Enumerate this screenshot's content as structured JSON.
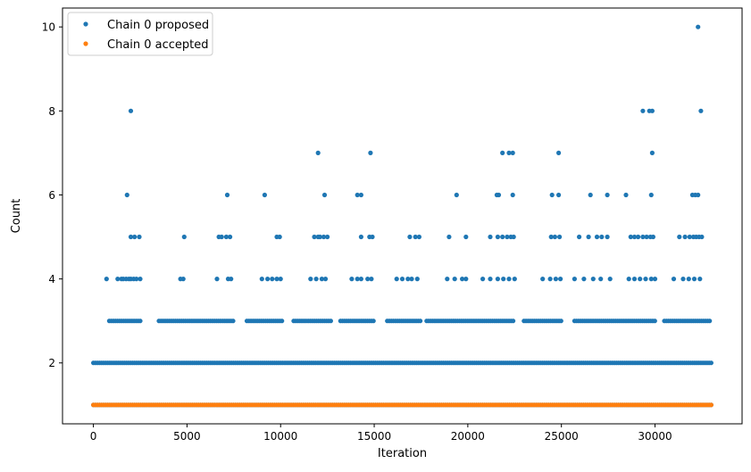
{
  "chart_data": {
    "type": "scatter",
    "title": "",
    "xlabel": "Iteration",
    "ylabel": "Count",
    "xlim": [
      -1650,
      34650
    ],
    "ylim": [
      0.55,
      10.45
    ],
    "x_ticks": [
      0,
      5000,
      10000,
      15000,
      20000,
      25000,
      30000
    ],
    "x_tick_labels": [
      "0",
      "5000",
      "10000",
      "15000",
      "20000",
      "25000",
      "30000"
    ],
    "y_ticks": [
      2,
      4,
      6,
      8,
      10
    ],
    "y_tick_labels": [
      "2",
      "4",
      "6",
      "8",
      "10"
    ],
    "grid": false,
    "legend_position": "top-left",
    "x_max_iteration": 33000,
    "series": [
      {
        "name": "Chain 0 proposed",
        "color": "#1f77b4",
        "dense_bands": [
          {
            "y": 1,
            "ranges": [
              [
                0,
                33000
              ]
            ]
          },
          {
            "y": 2,
            "ranges": [
              [
                0,
                33000
              ]
            ]
          },
          {
            "y": 3,
            "ranges": [
              [
                850,
                2600
              ],
              [
                3500,
                7500
              ],
              [
                8200,
                10100
              ],
              [
                10700,
                12700
              ],
              [
                13200,
                15000
              ],
              [
                15700,
                17500
              ],
              [
                17800,
                22500
              ],
              [
                23000,
                25000
              ],
              [
                25700,
                30000
              ],
              [
                30500,
                33000
              ]
            ]
          }
        ],
        "points": [
          [
            700,
            4
          ],
          [
            1300,
            4
          ],
          [
            1500,
            4
          ],
          [
            1600,
            4
          ],
          [
            1750,
            4
          ],
          [
            1900,
            4
          ],
          [
            2000,
            4
          ],
          [
            2150,
            4
          ],
          [
            2300,
            4
          ],
          [
            2500,
            4
          ],
          [
            4650,
            4
          ],
          [
            4800,
            4
          ],
          [
            6600,
            4
          ],
          [
            7200,
            4
          ],
          [
            7350,
            4
          ],
          [
            9000,
            4
          ],
          [
            9300,
            4
          ],
          [
            9550,
            4
          ],
          [
            9800,
            4
          ],
          [
            10000,
            4
          ],
          [
            11600,
            4
          ],
          [
            11900,
            4
          ],
          [
            12200,
            4
          ],
          [
            12400,
            4
          ],
          [
            13800,
            4
          ],
          [
            14100,
            4
          ],
          [
            14300,
            4
          ],
          [
            14650,
            4
          ],
          [
            14850,
            4
          ],
          [
            16200,
            4
          ],
          [
            16500,
            4
          ],
          [
            16800,
            4
          ],
          [
            17000,
            4
          ],
          [
            17300,
            4
          ],
          [
            18900,
            4
          ],
          [
            19300,
            4
          ],
          [
            19700,
            4
          ],
          [
            19900,
            4
          ],
          [
            20800,
            4
          ],
          [
            21200,
            4
          ],
          [
            21600,
            4
          ],
          [
            21900,
            4
          ],
          [
            22200,
            4
          ],
          [
            22500,
            4
          ],
          [
            24000,
            4
          ],
          [
            24400,
            4
          ],
          [
            24700,
            4
          ],
          [
            24950,
            4
          ],
          [
            25700,
            4
          ],
          [
            26200,
            4
          ],
          [
            26700,
            4
          ],
          [
            27100,
            4
          ],
          [
            27600,
            4
          ],
          [
            28600,
            4
          ],
          [
            28900,
            4
          ],
          [
            29200,
            4
          ],
          [
            29500,
            4
          ],
          [
            29800,
            4
          ],
          [
            30000,
            4
          ],
          [
            31000,
            4
          ],
          [
            31500,
            4
          ],
          [
            31800,
            4
          ],
          [
            32100,
            4
          ],
          [
            32400,
            4
          ],
          [
            2000,
            5
          ],
          [
            2200,
            5
          ],
          [
            2450,
            5
          ],
          [
            4850,
            5
          ],
          [
            6700,
            5
          ],
          [
            6850,
            5
          ],
          [
            7100,
            5
          ],
          [
            7300,
            5
          ],
          [
            9800,
            5
          ],
          [
            9950,
            5
          ],
          [
            11800,
            5
          ],
          [
            12000,
            5
          ],
          [
            12100,
            5
          ],
          [
            12300,
            5
          ],
          [
            12500,
            5
          ],
          [
            14300,
            5
          ],
          [
            14750,
            5
          ],
          [
            14900,
            5
          ],
          [
            16900,
            5
          ],
          [
            17200,
            5
          ],
          [
            17400,
            5
          ],
          [
            19000,
            5
          ],
          [
            19900,
            5
          ],
          [
            21200,
            5
          ],
          [
            21600,
            5
          ],
          [
            21850,
            5
          ],
          [
            22100,
            5
          ],
          [
            22300,
            5
          ],
          [
            22450,
            5
          ],
          [
            24450,
            5
          ],
          [
            24650,
            5
          ],
          [
            24900,
            5
          ],
          [
            25950,
            5
          ],
          [
            26450,
            5
          ],
          [
            26900,
            5
          ],
          [
            27150,
            5
          ],
          [
            27450,
            5
          ],
          [
            28700,
            5
          ],
          [
            28900,
            5
          ],
          [
            29100,
            5
          ],
          [
            29350,
            5
          ],
          [
            29550,
            5
          ],
          [
            29750,
            5
          ],
          [
            29900,
            5
          ],
          [
            31300,
            5
          ],
          [
            31600,
            5
          ],
          [
            31850,
            5
          ],
          [
            32050,
            5
          ],
          [
            32200,
            5
          ],
          [
            32350,
            5
          ],
          [
            32500,
            5
          ],
          [
            1800,
            6
          ],
          [
            7150,
            6
          ],
          [
            9150,
            6
          ],
          [
            12350,
            6
          ],
          [
            14100,
            6
          ],
          [
            14300,
            6
          ],
          [
            19400,
            6
          ],
          [
            21550,
            6
          ],
          [
            21650,
            6
          ],
          [
            22400,
            6
          ],
          [
            24500,
            6
          ],
          [
            24850,
            6
          ],
          [
            26550,
            6
          ],
          [
            27450,
            6
          ],
          [
            28450,
            6
          ],
          [
            29800,
            6
          ],
          [
            32000,
            6
          ],
          [
            32150,
            6
          ],
          [
            32300,
            6
          ],
          [
            12000,
            7
          ],
          [
            14800,
            7
          ],
          [
            21850,
            7
          ],
          [
            22200,
            7
          ],
          [
            22400,
            7
          ],
          [
            24850,
            7
          ],
          [
            29850,
            7
          ],
          [
            2000,
            8
          ],
          [
            29350,
            8
          ],
          [
            29700,
            8
          ],
          [
            29850,
            8
          ],
          [
            32450,
            8
          ],
          [
            32300,
            10
          ]
        ]
      },
      {
        "name": "Chain 0 accepted",
        "color": "#ff7f0e",
        "dense_bands": [
          {
            "y": 1,
            "ranges": [
              [
                0,
                33000
              ]
            ]
          }
        ],
        "points": []
      }
    ]
  }
}
